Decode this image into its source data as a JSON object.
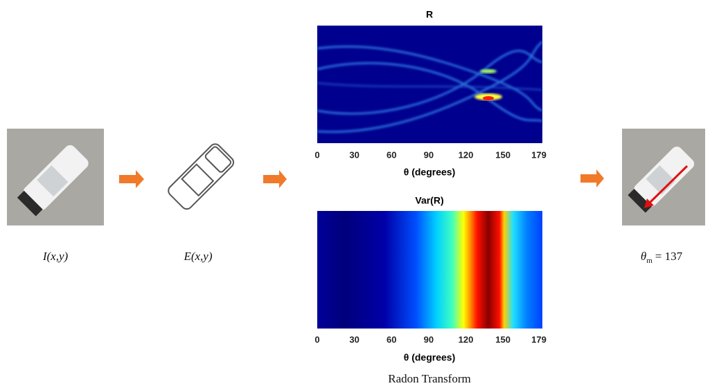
{
  "input_label": "I(x,y)",
  "edge_label": "E(x,y)",
  "radon_plot": {
    "title": "R",
    "xlabel": "θ (degrees)",
    "xticks": [
      0,
      30,
      60,
      90,
      120,
      150,
      179
    ],
    "xlim": [
      0,
      179
    ]
  },
  "variance_plot": {
    "title": "Var(R)",
    "xlabel": "θ (degrees)",
    "xticks": [
      0,
      30,
      60,
      90,
      120,
      150,
      179
    ],
    "xlim": [
      0,
      179
    ]
  },
  "caption": "Radon Transform",
  "result_label": {
    "symbol": "θ",
    "subscript": "m",
    "value_text": "= 137"
  }
}
